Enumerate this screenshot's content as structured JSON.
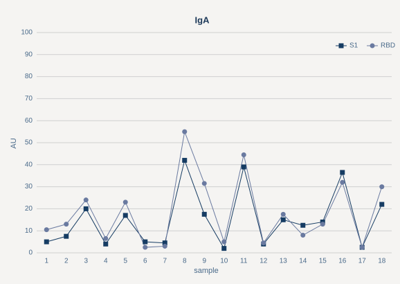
{
  "chart_data": {
    "type": "line",
    "title": "IgA",
    "x_label": "sample",
    "y_label": "AU",
    "categories": [
      "1",
      "2",
      "3",
      "4",
      "5",
      "6",
      "7",
      "8",
      "9",
      "10",
      "11",
      "12",
      "13",
      "14",
      "15",
      "16",
      "17",
      "18"
    ],
    "series": [
      {
        "name": "S1",
        "color": "#163c63",
        "marker": "square",
        "values": [
          5,
          7.5,
          20,
          4,
          17,
          5,
          4.5,
          42,
          17.5,
          2,
          39,
          4,
          15,
          12.5,
          14,
          36.5,
          2.5,
          22
        ]
      },
      {
        "name": "RBD",
        "color": "#6a7aa0",
        "marker": "circle",
        "values": [
          10.5,
          13,
          24,
          6.5,
          23,
          2.5,
          3,
          55,
          31.5,
          5,
          44.5,
          4.5,
          17.5,
          8,
          13,
          32,
          2.5,
          30
        ]
      }
    ],
    "ylim": [
      0,
      100
    ],
    "yticks": [
      0,
      10,
      20,
      30,
      40,
      50,
      60,
      70,
      80,
      90,
      100
    ],
    "grid": true,
    "legend": "top-right"
  }
}
